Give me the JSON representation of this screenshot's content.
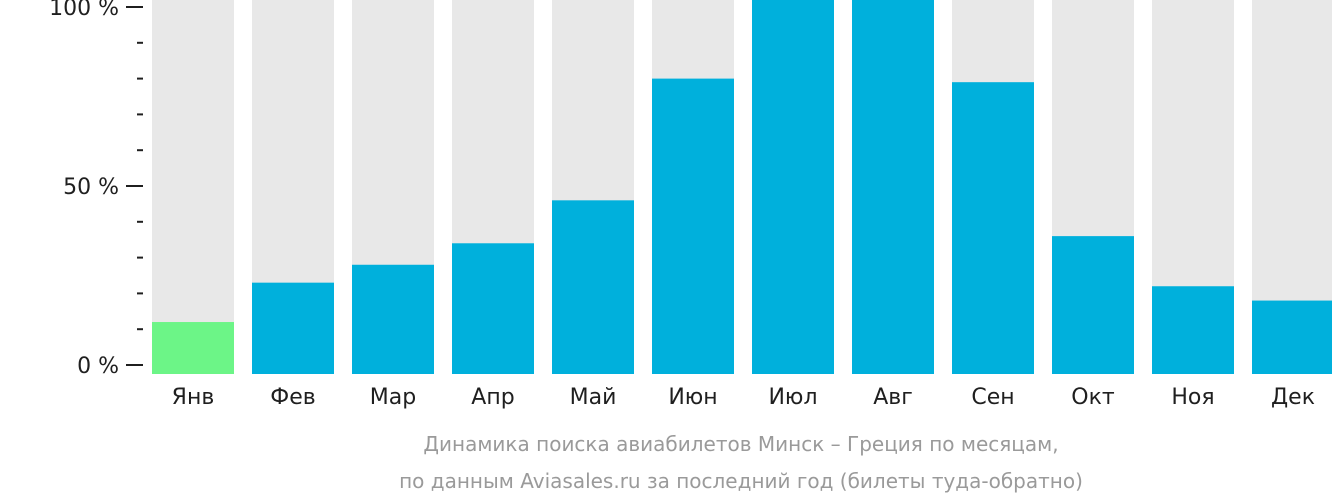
{
  "chart_data": {
    "type": "bar",
    "categories": [
      "Янв",
      "Фев",
      "Мар",
      "Апр",
      "Май",
      "Июн",
      "Июл",
      "Авг",
      "Сен",
      "Окт",
      "Ноя",
      "Дек"
    ],
    "values": [
      12,
      23,
      28,
      34,
      46,
      80,
      104,
      103,
      79,
      36,
      22,
      18
    ],
    "highlight_index": 0,
    "ylim": [
      0,
      100
    ],
    "y_ticks": [
      {
        "value": 100,
        "label": "100 %"
      },
      {
        "value": 50,
        "label": "50 %"
      },
      {
        "value": 0,
        "label": "0 %"
      }
    ],
    "y_minor_step": 10,
    "title": "Динамика поиска авиабилетов Минск – Греция по месяцам,",
    "subtitle": "по данным Aviasales.ru за последний год (билеты туда-обратно)",
    "xlabel": "",
    "ylabel": "",
    "grid": false,
    "legend": "none",
    "colors": {
      "bar": "#00b0dc",
      "highlight": "#6cf587",
      "background_bar": "#e8e8e8",
      "axis": "#1f1f1f",
      "caption": "#9a9a9a"
    }
  }
}
